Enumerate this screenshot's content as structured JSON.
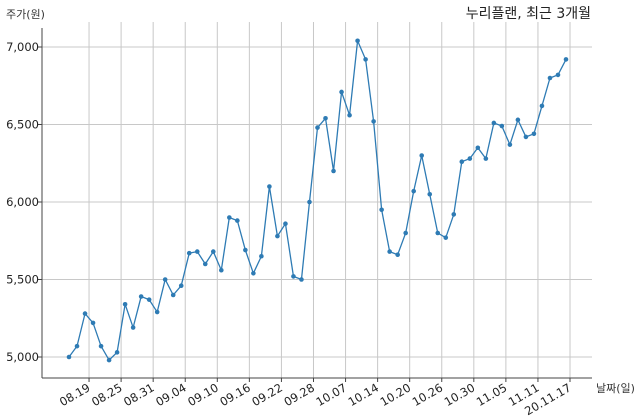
{
  "chart_data": {
    "type": "line",
    "title": "누리플랜, 최근 3개월",
    "ylabel": "주가(원)",
    "xlabel": "날짜(일)",
    "ylim": [
      4850,
      7150
    ],
    "yticks": [
      5000,
      5500,
      6000,
      6500,
      7000
    ],
    "ytick_labels": [
      "5,000",
      "5,500",
      "6,000",
      "6,500",
      "7,000"
    ],
    "xtick_labels": [
      "08.19",
      "08.25",
      "08.31",
      "09.04",
      "09.10",
      "09.16",
      "09.22",
      "09.28",
      "10.07",
      "10.14",
      "10.20",
      "10.26",
      "10.30",
      "11.05",
      "11.11",
      "20.11.17"
    ],
    "xtick_positions": [
      2.5,
      6.5,
      10.5,
      14.5,
      18.5,
      22.5,
      26.5,
      30.5,
      34.5,
      38.5,
      42.5,
      46.5,
      50.5,
      54.5,
      58.5,
      62.5
    ],
    "grid": true,
    "line_color": "#2e7bb4",
    "series": [
      {
        "values": [
          5000,
          5070,
          5280,
          5220,
          5070,
          4980,
          5030,
          5340,
          5190,
          5390,
          5370,
          5290,
          5500,
          5400,
          5460,
          5670,
          5680,
          5600,
          5680,
          5560,
          5900,
          5880,
          5690,
          5540,
          5650,
          6100,
          5780,
          5860,
          5520,
          5500,
          6000,
          6480,
          6540,
          6200,
          6710,
          6560,
          7040,
          6920,
          6520,
          5950,
          5680,
          5660,
          5800,
          6070,
          6300,
          6050,
          5800,
          5770,
          5920,
          6260,
          6280,
          6350,
          6280,
          6510,
          6490,
          6370,
          6530,
          6420,
          6440,
          6620,
          6800,
          6820,
          6920
        ]
      }
    ]
  }
}
